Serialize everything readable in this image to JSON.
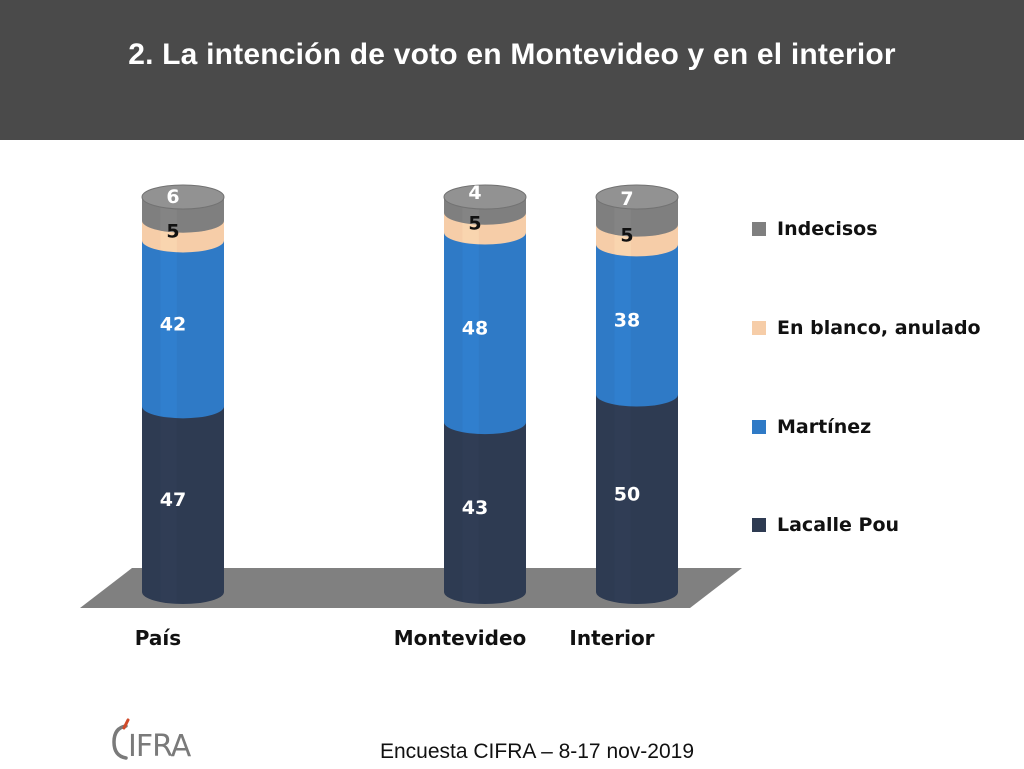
{
  "header": {
    "title": "2. La intención de voto en Montevideo y en el interior"
  },
  "footer": {
    "text": "Encuesta CIFRA – 8-17 nov-2019"
  },
  "logo": {
    "text": "CIFRA",
    "color": "#7a7a7a"
  },
  "chart_data": {
    "type": "bar",
    "stacked": true,
    "three_d": true,
    "title": "2. La intención de voto en Montevideo y en el interior",
    "categories": [
      "País",
      "Montevideo",
      "Interior"
    ],
    "series": [
      {
        "name": "Lacalle Pou",
        "values": [
          47,
          43,
          50
        ],
        "color": "#2e3b52"
      },
      {
        "name": "Martínez",
        "values": [
          42,
          48,
          38
        ],
        "color": "#2f7ac6"
      },
      {
        "name": "En blanco, anulado",
        "values": [
          5,
          5,
          5
        ],
        "color": "#f6cda8"
      },
      {
        "name": "Indecisos",
        "values": [
          6,
          4,
          7
        ],
        "color": "#7f7f7f"
      }
    ],
    "legend": {
      "position": "right",
      "order": [
        "Indecisos",
        "En blanco, anulado",
        "Martínez",
        "Lacalle Pou"
      ]
    },
    "axes": "none",
    "grid": false,
    "floor_color": "#808080"
  }
}
